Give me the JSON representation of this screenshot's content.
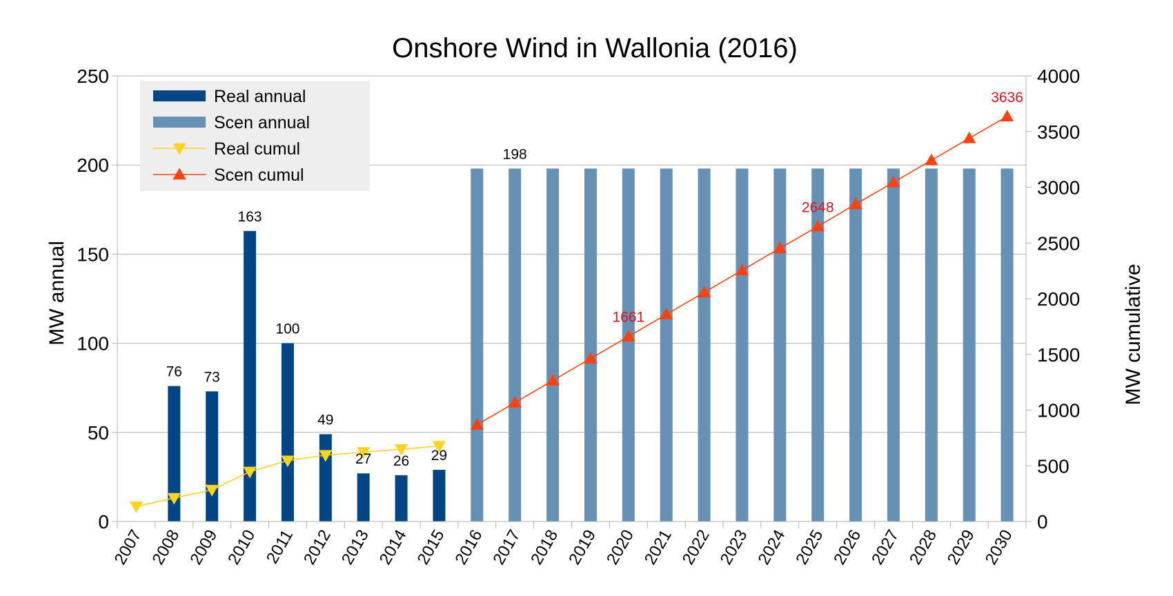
{
  "chart_data": {
    "type": "bar",
    "title": "Onshore Wind in Wallonia (2016)",
    "ylabel_left": "MW annual",
    "ylabel_right": "MW cumulative",
    "ylim_left": [
      0,
      250
    ],
    "yticks_left": [
      0,
      50,
      100,
      150,
      200,
      250
    ],
    "ylim_right": [
      0,
      4000
    ],
    "yticks_right": [
      0,
      500,
      1000,
      1500,
      2000,
      2500,
      3000,
      3500,
      4000
    ],
    "grid": true,
    "legend_position": "top-left",
    "categories": [
      "2007",
      "2008",
      "2009",
      "2010",
      "2011",
      "2012",
      "2013",
      "2014",
      "2015",
      "2016",
      "2017",
      "2018",
      "2019",
      "2020",
      "2021",
      "2022",
      "2023",
      "2024",
      "2025",
      "2026",
      "2027",
      "2028",
      "2029",
      "2030"
    ],
    "series": [
      {
        "name": "Real annual",
        "kind": "bar",
        "axis": "left",
        "color": "#004586",
        "values": [
          null,
          76,
          73,
          163,
          100,
          49,
          27,
          26,
          29,
          null,
          null,
          null,
          null,
          null,
          null,
          null,
          null,
          null,
          null,
          null,
          null,
          null,
          null,
          null
        ],
        "data_labels": [
          null,
          "76",
          "73",
          "163",
          "100",
          "49",
          "27",
          "26",
          "29",
          null,
          null,
          null,
          null,
          null,
          null,
          null,
          null,
          null,
          null,
          null,
          null,
          null,
          null,
          null
        ]
      },
      {
        "name": "Scen annual",
        "kind": "bar",
        "axis": "left",
        "color": "#6690b4",
        "values": [
          null,
          null,
          null,
          null,
          null,
          null,
          null,
          null,
          null,
          198,
          198,
          198,
          198,
          198,
          198,
          198,
          198,
          198,
          198,
          198,
          198,
          198,
          198,
          198
        ],
        "data_labels": [
          null,
          null,
          null,
          null,
          null,
          null,
          null,
          null,
          null,
          null,
          "198",
          null,
          null,
          null,
          null,
          null,
          null,
          null,
          null,
          null,
          null,
          null,
          null,
          null
        ]
      },
      {
        "name": "Real cumul",
        "kind": "line",
        "marker": "triangle-down",
        "axis": "right",
        "color": "#ffd320",
        "values": [
          135,
          211,
          284,
          447,
          547,
          596,
          623,
          649,
          678,
          null,
          null,
          null,
          null,
          null,
          null,
          null,
          null,
          null,
          null,
          null,
          null,
          null,
          null,
          null
        ]
      },
      {
        "name": "Scen cumul",
        "kind": "line",
        "marker": "triangle-up",
        "axis": "right",
        "color": "#ff420e",
        "values": [
          null,
          null,
          null,
          null,
          null,
          null,
          null,
          null,
          null,
          869,
          1067,
          1265,
          1463,
          1661,
          1859,
          2057,
          2255,
          2453,
          2648,
          2849,
          3045,
          3243,
          3440,
          3636
        ],
        "data_labels": [
          null,
          null,
          null,
          null,
          null,
          null,
          null,
          null,
          null,
          null,
          null,
          null,
          null,
          "1661",
          null,
          null,
          null,
          null,
          "2648",
          null,
          null,
          null,
          null,
          "3636"
        ]
      }
    ]
  }
}
